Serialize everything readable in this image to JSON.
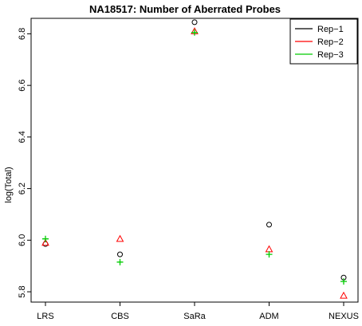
{
  "chart_data": {
    "type": "scatter",
    "title": "NA18517: Number of Aberrated Probes",
    "xlabel": "",
    "ylabel": "log(Total)",
    "categories": [
      "LRS",
      "CBS",
      "SaRa",
      "ADM",
      "NEXUS"
    ],
    "ylim": [
      5.76,
      6.86
    ],
    "yticks": [
      5.8,
      6.0,
      6.2,
      6.4,
      6.6,
      6.8
    ],
    "ytick_labels": [
      "5.8",
      "6.0",
      "6.2",
      "6.4",
      "6.6",
      "6.8"
    ],
    "legend_position": "top-right",
    "series": [
      {
        "name": "Rep−1",
        "marker": "circle",
        "color": "#000000",
        "values": [
          5.985,
          5.945,
          6.845,
          6.06,
          5.855
        ]
      },
      {
        "name": "Rep−2",
        "marker": "triangle",
        "color": "#ff0000",
        "values": [
          5.99,
          6.005,
          6.81,
          5.965,
          5.785
        ]
      },
      {
        "name": "Rep−3",
        "marker": "plus",
        "color": "#00cc00",
        "values": [
          6.005,
          5.915,
          6.805,
          5.945,
          5.84
        ]
      }
    ]
  }
}
